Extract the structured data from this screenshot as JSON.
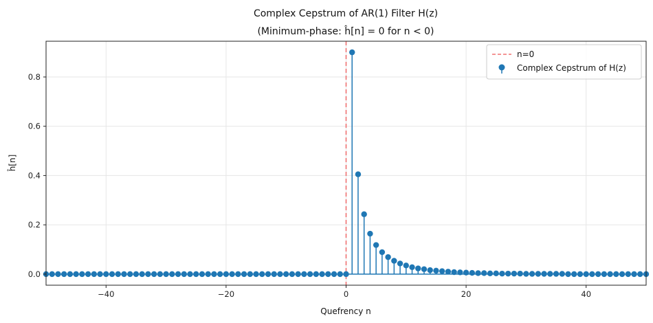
{
  "chart_data": {
    "type": "stem",
    "title_line1": "Complex Cepstrum of AR(1) Filter H(z)",
    "title_line2": "(Minimum-phase: ĥ[n] = 0 for n < 0)",
    "xlabel": "Quefrency n",
    "ylabel": "ĥ[n]",
    "xlim": [
      -50,
      50
    ],
    "ylim": [
      -0.045,
      0.945
    ],
    "xticks": [
      -40,
      -20,
      0,
      20,
      40
    ],
    "xtick_labels": [
      "−40",
      "−20",
      "0",
      "20",
      "40"
    ],
    "yticks": [
      0.0,
      0.2,
      0.4,
      0.6,
      0.8
    ],
    "ytick_labels": [
      "0.0",
      "0.2",
      "0.4",
      "0.6",
      "0.8"
    ],
    "grid": true,
    "legend_position": "top-right",
    "reference_line": {
      "x": 0,
      "label": "n=0",
      "color": "#f07070",
      "style": "dashed"
    },
    "series": [
      {
        "name": "Complex Cepstrum of H(z)",
        "color": "#1f77b4",
        "x": [
          -50,
          -49,
          -48,
          -47,
          -46,
          -45,
          -44,
          -43,
          -42,
          -41,
          -40,
          -39,
          -38,
          -37,
          -36,
          -35,
          -34,
          -33,
          -32,
          -31,
          -30,
          -29,
          -28,
          -27,
          -26,
          -25,
          -24,
          -23,
          -22,
          -21,
          -20,
          -19,
          -18,
          -17,
          -16,
          -15,
          -14,
          -13,
          -12,
          -11,
          -10,
          -9,
          -8,
          -7,
          -6,
          -5,
          -4,
          -3,
          -2,
          -1,
          0,
          1,
          2,
          3,
          4,
          5,
          6,
          7,
          8,
          9,
          10,
          11,
          12,
          13,
          14,
          15,
          16,
          17,
          18,
          19,
          20,
          21,
          22,
          23,
          24,
          25,
          26,
          27,
          28,
          29,
          30,
          31,
          32,
          33,
          34,
          35,
          36,
          37,
          38,
          39,
          40,
          41,
          42,
          43,
          44,
          45,
          46,
          47,
          48,
          49,
          50
        ],
        "values": [
          0,
          0,
          0,
          0,
          0,
          0,
          0,
          0,
          0,
          0,
          0,
          0,
          0,
          0,
          0,
          0,
          0,
          0,
          0,
          0,
          0,
          0,
          0,
          0,
          0,
          0,
          0,
          0,
          0,
          0,
          0,
          0,
          0,
          0,
          0,
          0,
          0,
          0,
          0,
          0,
          0,
          0,
          0,
          0,
          0,
          0,
          0,
          0,
          0,
          0,
          0,
          0.9,
          0.405,
          0.243,
          0.164,
          0.118,
          0.089,
          0.069,
          0.054,
          0.043,
          0.035,
          0.028,
          0.023,
          0.02,
          0.016,
          0.014,
          0.012,
          0.01,
          0.008,
          0.007,
          0.006,
          0.005,
          0.004,
          0.004,
          0.003,
          0.003,
          0.002,
          0.002,
          0.002,
          0.002,
          0.001,
          0.001,
          0.001,
          0.001,
          0.001,
          0.001,
          0.001,
          0,
          0,
          0,
          0,
          0,
          0,
          0,
          0,
          0,
          0,
          0,
          0,
          0,
          0
        ]
      }
    ]
  }
}
